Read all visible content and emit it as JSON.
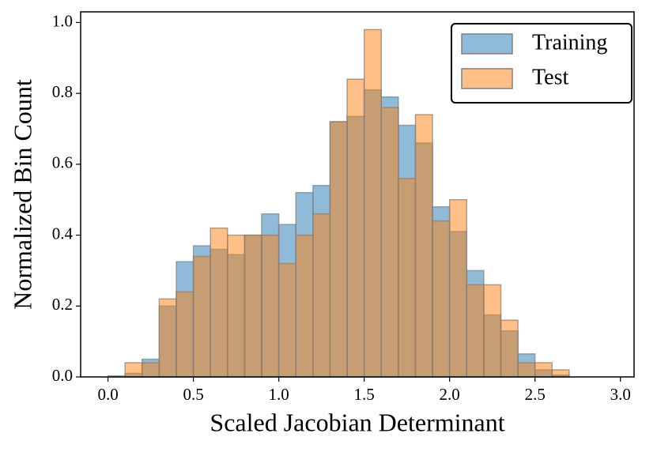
{
  "chart_data": {
    "type": "histogram",
    "xlabel": "Scaled Jacobian Determinant",
    "ylabel": "Normalized Bin Count",
    "bins": [
      0.0,
      0.1,
      0.2,
      0.3,
      0.4,
      0.5,
      0.6,
      0.7,
      0.8,
      0.9,
      1.0,
      1.1,
      1.2,
      1.3,
      1.4,
      1.5,
      1.6,
      1.7,
      1.8,
      1.9,
      2.0,
      2.1,
      2.2,
      2.3,
      2.4,
      2.5,
      2.6,
      2.7,
      2.8,
      2.9,
      3.0
    ],
    "series": [
      {
        "name": "Training",
        "color": "#1f77b4",
        "values": [
          0.003,
          0.01,
          0.05,
          0.2,
          0.325,
          0.37,
          0.36,
          0.345,
          0.4,
          0.46,
          0.43,
          0.52,
          0.54,
          0.72,
          0.735,
          0.81,
          0.79,
          0.71,
          0.66,
          0.48,
          0.41,
          0.3,
          0.175,
          0.13,
          0.065,
          0.02,
          0.005,
          0,
          0,
          0
        ]
      },
      {
        "name": "Test",
        "color": "#ff7f0e",
        "values": [
          0,
          0.04,
          0.04,
          0.22,
          0.24,
          0.34,
          0.42,
          0.4,
          0.4,
          0.4,
          0.32,
          0.4,
          0.46,
          0.72,
          0.84,
          0.98,
          0.76,
          0.56,
          0.74,
          0.44,
          0.5,
          0.26,
          0.26,
          0.16,
          0.04,
          0.04,
          0.02,
          0,
          0,
          0
        ]
      }
    ],
    "xlim": [
      -0.16,
      3.08
    ],
    "ylim": [
      0,
      1.03
    ],
    "xticks": [
      {
        "value": 0,
        "label": "0.0"
      },
      {
        "value": 0.5,
        "label": "0.5"
      },
      {
        "value": 1,
        "label": "1.0"
      },
      {
        "value": 1.5,
        "label": "1.5"
      },
      {
        "value": 2,
        "label": "2.0"
      },
      {
        "value": 2.5,
        "label": "2.5"
      },
      {
        "value": 3,
        "label": "3.0"
      }
    ],
    "yticks": [
      {
        "value": 0,
        "label": "0.0"
      },
      {
        "value": 0.2,
        "label": "0.2"
      },
      {
        "value": 0.4,
        "label": "0.4"
      },
      {
        "value": 0.6,
        "label": "0.6"
      },
      {
        "value": 0.8,
        "label": "0.8"
      },
      {
        "value": 1,
        "label": "1.0"
      }
    ],
    "legend": "upper right"
  }
}
